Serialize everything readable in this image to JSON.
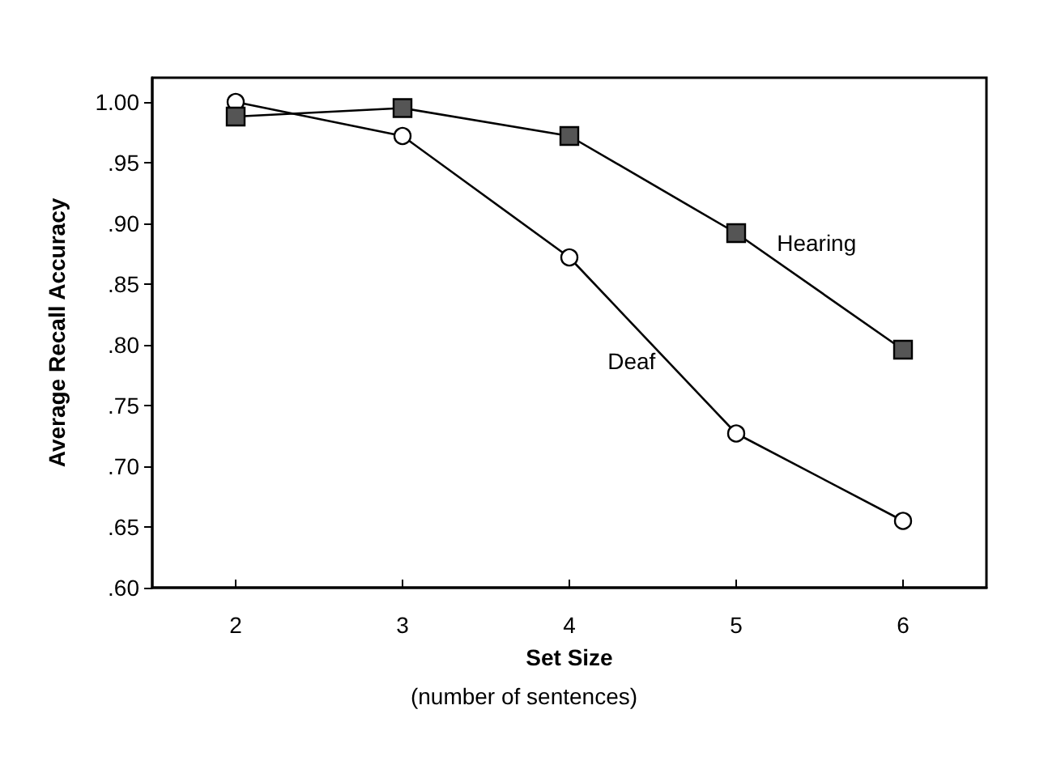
{
  "chart_data": {
    "type": "line",
    "xlabel": "Set Size",
    "annotations": [
      "(number of sentences)"
    ],
    "x": [
      2,
      3,
      4,
      5,
      6
    ],
    "series": [
      {
        "name": "Hearing",
        "color": "#555555",
        "marker": "square",
        "values": [
          0.988,
          0.995,
          0.972,
          0.892,
          0.796
        ]
      },
      {
        "name": "Deaf",
        "color": "#ffffff",
        "marker": "circle",
        "values": [
          1.0,
          0.972,
          0.872,
          0.727,
          0.655
        ]
      }
    ],
    "ylabel": "Average Recall Accuracy",
    "xlim": [
      1.5,
      6.5
    ],
    "xticks": [
      2,
      3,
      4,
      5,
      6
    ],
    "ylim": [
      0.6,
      1.02
    ],
    "yticks": [
      {
        "value": 0.6,
        "label": ".60"
      },
      {
        "value": 0.65,
        "label": ".65"
      },
      {
        "value": 0.7,
        "label": ".70"
      },
      {
        "value": 0.75,
        "label": ".75"
      },
      {
        "value": 0.8,
        "label": ".80"
      },
      {
        "value": 0.85,
        "label": ".85"
      },
      {
        "value": 0.9,
        "label": ".90"
      },
      {
        "value": 0.95,
        "label": ".95"
      },
      {
        "value": 1.0,
        "label": "1.00"
      }
    ],
    "grid": false,
    "legend": false
  }
}
